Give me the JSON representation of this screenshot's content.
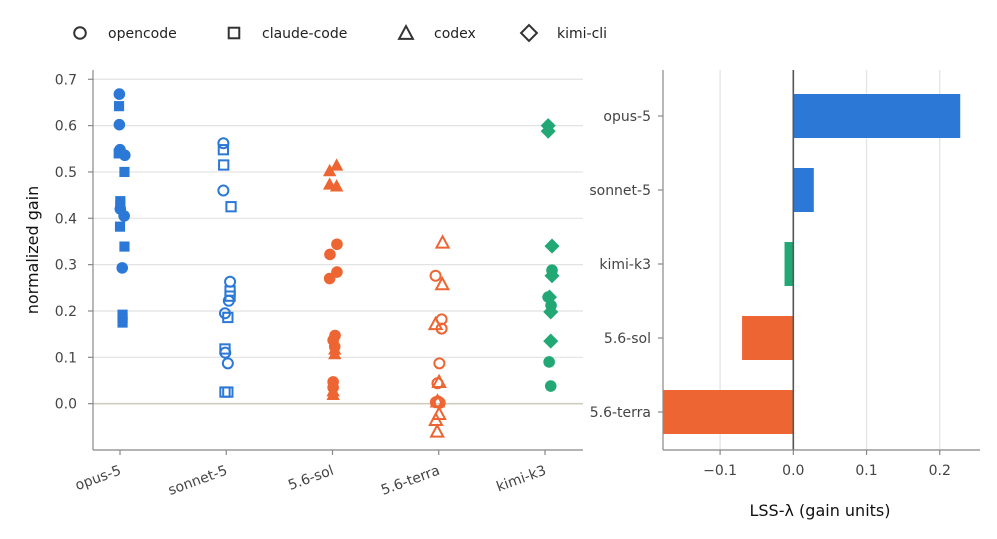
{
  "legend": {
    "placement": "top-left",
    "items": [
      {
        "label": "opencode",
        "marker": "circle"
      },
      {
        "label": "claude-code",
        "marker": "square"
      },
      {
        "label": "codex",
        "marker": "triangle"
      },
      {
        "label": "kimi-cli",
        "marker": "diamond"
      }
    ]
  },
  "colors": {
    "opus-5": "#2b78d6",
    "sonnet-5": "#2b78d6",
    "5.6-sol": "#ec6533",
    "5.6-terra": "#ec6533",
    "kimi-k3": "#22a875",
    "grid": "#e2e2e2",
    "zero_line": "#cfcdbf",
    "axis": "#888888"
  },
  "chart_data": [
    {
      "type": "scatter",
      "ylabel": "normalized gain",
      "xlabel": "",
      "categories": [
        "opus-5",
        "sonnet-5",
        "5.6-sol",
        "5.6-terra",
        "kimi-k3"
      ],
      "ylim": [
        -0.1,
        0.72
      ],
      "yticks": [
        "0.0",
        "0.1",
        "0.2",
        "0.3",
        "0.4",
        "0.5",
        "0.6",
        "0.7"
      ],
      "grid": "horizontal",
      "fill_style": {
        "opus-5": "filled",
        "sonnet-5": "hollow",
        "5.6-sol": "filled",
        "5.6-terra": "hollow",
        "kimi-k3": "filled"
      },
      "points": [
        {
          "model": "opus-5",
          "harness": "opencode",
          "jitter": -0.02,
          "y": 0.668
        },
        {
          "model": "opus-5",
          "harness": "opencode",
          "jitter": -0.02,
          "y": 0.602
        },
        {
          "model": "opus-5",
          "harness": "opencode",
          "jitter": 0.0,
          "y": 0.548
        },
        {
          "model": "opus-5",
          "harness": "opencode",
          "jitter": 0.15,
          "y": 0.536
        },
        {
          "model": "opus-5",
          "harness": "opencode",
          "jitter": 0.01,
          "y": 0.42
        },
        {
          "model": "opus-5",
          "harness": "opencode",
          "jitter": 0.13,
          "y": 0.405
        },
        {
          "model": "opus-5",
          "harness": "opencode",
          "jitter": 0.07,
          "y": 0.293
        },
        {
          "model": "opus-5",
          "harness": "claude-code",
          "jitter": -0.03,
          "y": 0.642
        },
        {
          "model": "opus-5",
          "harness": "claude-code",
          "jitter": -0.04,
          "y": 0.54
        },
        {
          "model": "opus-5",
          "harness": "claude-code",
          "jitter": 0.14,
          "y": 0.5
        },
        {
          "model": "opus-5",
          "harness": "claude-code",
          "jitter": 0.01,
          "y": 0.437
        },
        {
          "model": "opus-5",
          "harness": "claude-code",
          "jitter": 0.01,
          "y": 0.427
        },
        {
          "model": "opus-5",
          "harness": "claude-code",
          "jitter": 0.0,
          "y": 0.382
        },
        {
          "model": "opus-5",
          "harness": "claude-code",
          "jitter": 0.14,
          "y": 0.339
        },
        {
          "model": "opus-5",
          "harness": "claude-code",
          "jitter": 0.08,
          "y": 0.192
        },
        {
          "model": "opus-5",
          "harness": "claude-code",
          "jitter": 0.08,
          "y": 0.184
        },
        {
          "model": "opus-5",
          "harness": "claude-code",
          "jitter": 0.08,
          "y": 0.175
        },
        {
          "model": "sonnet-5",
          "harness": "opencode",
          "jitter": -0.09,
          "y": 0.562
        },
        {
          "model": "sonnet-5",
          "harness": "opencode",
          "jitter": -0.09,
          "y": 0.46
        },
        {
          "model": "sonnet-5",
          "harness": "opencode",
          "jitter": 0.12,
          "y": 0.263
        },
        {
          "model": "sonnet-5",
          "harness": "opencode",
          "jitter": 0.08,
          "y": 0.222
        },
        {
          "model": "sonnet-5",
          "harness": "opencode",
          "jitter": -0.04,
          "y": 0.195
        },
        {
          "model": "sonnet-5",
          "harness": "opencode",
          "jitter": -0.03,
          "y": 0.11
        },
        {
          "model": "sonnet-5",
          "harness": "opencode",
          "jitter": 0.05,
          "y": 0.087
        },
        {
          "model": "sonnet-5",
          "harness": "claude-code",
          "jitter": -0.09,
          "y": 0.548
        },
        {
          "model": "sonnet-5",
          "harness": "claude-code",
          "jitter": -0.08,
          "y": 0.515
        },
        {
          "model": "sonnet-5",
          "harness": "claude-code",
          "jitter": 0.15,
          "y": 0.425
        },
        {
          "model": "sonnet-5",
          "harness": "claude-code",
          "jitter": 0.12,
          "y": 0.243
        },
        {
          "model": "sonnet-5",
          "harness": "claude-code",
          "jitter": 0.12,
          "y": 0.232
        },
        {
          "model": "sonnet-5",
          "harness": "claude-code",
          "jitter": 0.05,
          "y": 0.186
        },
        {
          "model": "sonnet-5",
          "harness": "claude-code",
          "jitter": -0.04,
          "y": 0.118
        },
        {
          "model": "sonnet-5",
          "harness": "claude-code",
          "jitter": -0.04,
          "y": 0.025
        },
        {
          "model": "sonnet-5",
          "harness": "claude-code",
          "jitter": 0.05,
          "y": 0.025
        },
        {
          "model": "5.6-sol",
          "harness": "opencode",
          "jitter": -0.08,
          "y": 0.322
        },
        {
          "model": "5.6-sol",
          "harness": "opencode",
          "jitter": 0.14,
          "y": 0.344
        },
        {
          "model": "5.6-sol",
          "harness": "opencode",
          "jitter": -0.09,
          "y": 0.27
        },
        {
          "model": "5.6-sol",
          "harness": "opencode",
          "jitter": 0.14,
          "y": 0.284
        },
        {
          "model": "5.6-sol",
          "harness": "opencode",
          "jitter": 0.08,
          "y": 0.147
        },
        {
          "model": "5.6-sol",
          "harness": "opencode",
          "jitter": 0.02,
          "y": 0.137
        },
        {
          "model": "5.6-sol",
          "harness": "opencode",
          "jitter": 0.07,
          "y": 0.123
        },
        {
          "model": "5.6-sol",
          "harness": "opencode",
          "jitter": 0.02,
          "y": 0.047
        },
        {
          "model": "5.6-sol",
          "harness": "opencode",
          "jitter": 0.02,
          "y": 0.035
        },
        {
          "model": "5.6-sol",
          "harness": "codex",
          "jitter": -0.09,
          "y": 0.503
        },
        {
          "model": "5.6-sol",
          "harness": "codex",
          "jitter": 0.13,
          "y": 0.515
        },
        {
          "model": "5.6-sol",
          "harness": "codex",
          "jitter": -0.09,
          "y": 0.474
        },
        {
          "model": "5.6-sol",
          "harness": "codex",
          "jitter": 0.13,
          "y": 0.47
        },
        {
          "model": "5.6-sol",
          "harness": "codex",
          "jitter": 0.07,
          "y": 0.118
        },
        {
          "model": "5.6-sol",
          "harness": "codex",
          "jitter": 0.07,
          "y": 0.108
        },
        {
          "model": "5.6-sol",
          "harness": "codex",
          "jitter": 0.02,
          "y": 0.028
        },
        {
          "model": "5.6-sol",
          "harness": "codex",
          "jitter": 0.02,
          "y": 0.02
        },
        {
          "model": "5.6-terra",
          "harness": "opencode",
          "jitter": -0.1,
          "y": 0.276
        },
        {
          "model": "5.6-terra",
          "harness": "opencode",
          "jitter": 0.09,
          "y": 0.182
        },
        {
          "model": "5.6-terra",
          "harness": "opencode",
          "jitter": 0.09,
          "y": 0.162
        },
        {
          "model": "5.6-terra",
          "harness": "opencode",
          "jitter": 0.02,
          "y": 0.087
        },
        {
          "model": "5.6-terra",
          "harness": "opencode",
          "jitter": -0.04,
          "y": 0.044
        },
        {
          "model": "5.6-terra",
          "harness": "opencode",
          "jitter": -0.09,
          "y": 0.003
        },
        {
          "model": "5.6-terra",
          "harness": "opencode",
          "jitter": -0.03,
          "y": 0.005
        },
        {
          "model": "5.6-terra",
          "harness": "opencode",
          "jitter": 0.03,
          "y": 0.002
        },
        {
          "model": "5.6-terra",
          "harness": "codex",
          "jitter": 0.12,
          "y": 0.348
        },
        {
          "model": "5.6-terra",
          "harness": "codex",
          "jitter": 0.11,
          "y": 0.258
        },
        {
          "model": "5.6-terra",
          "harness": "codex",
          "jitter": -0.1,
          "y": 0.172
        },
        {
          "model": "5.6-terra",
          "harness": "codex",
          "jitter": 0.01,
          "y": 0.047
        },
        {
          "model": "5.6-terra",
          "harness": "codex",
          "jitter": -0.04,
          "y": 0.005
        },
        {
          "model": "5.6-terra",
          "harness": "codex",
          "jitter": 0.01,
          "y": -0.022
        },
        {
          "model": "5.6-terra",
          "harness": "codex",
          "jitter": -0.09,
          "y": -0.035
        },
        {
          "model": "5.6-terra",
          "harness": "codex",
          "jitter": -0.05,
          "y": -0.06
        },
        {
          "model": "kimi-k3",
          "harness": "opencode",
          "jitter": 0.22,
          "y": 0.288
        },
        {
          "model": "kimi-k3",
          "harness": "opencode",
          "jitter": 0.1,
          "y": 0.23
        },
        {
          "model": "kimi-k3",
          "harness": "opencode",
          "jitter": 0.19,
          "y": 0.212
        },
        {
          "model": "kimi-k3",
          "harness": "opencode",
          "jitter": 0.13,
          "y": 0.09
        },
        {
          "model": "kimi-k3",
          "harness": "opencode",
          "jitter": 0.18,
          "y": 0.038
        },
        {
          "model": "kimi-k3",
          "harness": "kimi-cli",
          "jitter": 0.1,
          "y": 0.6
        },
        {
          "model": "kimi-k3",
          "harness": "kimi-cli",
          "jitter": 0.1,
          "y": 0.588
        },
        {
          "model": "kimi-k3",
          "harness": "kimi-cli",
          "jitter": 0.22,
          "y": 0.34
        },
        {
          "model": "kimi-k3",
          "harness": "kimi-cli",
          "jitter": 0.22,
          "y": 0.276
        },
        {
          "model": "kimi-k3",
          "harness": "kimi-cli",
          "jitter": 0.14,
          "y": 0.23
        },
        {
          "model": "kimi-k3",
          "harness": "kimi-cli",
          "jitter": 0.18,
          "y": 0.198
        },
        {
          "model": "kimi-k3",
          "harness": "kimi-cli",
          "jitter": 0.18,
          "y": 0.135
        }
      ]
    },
    {
      "type": "bar",
      "orientation": "horizontal",
      "xlabel": "LSS-λ  (gain units)",
      "ylabel": "",
      "categories": [
        "opus-5",
        "sonnet-5",
        "kimi-k3",
        "5.6-sol",
        "5.6-terra"
      ],
      "values": [
        0.228,
        0.028,
        -0.012,
        -0.07,
        -0.178
      ],
      "xlim": [
        -0.178,
        0.255
      ],
      "xticks": [
        "−0.1",
        "0.0",
        "0.1",
        "0.2"
      ],
      "grid": "vertical"
    }
  ]
}
